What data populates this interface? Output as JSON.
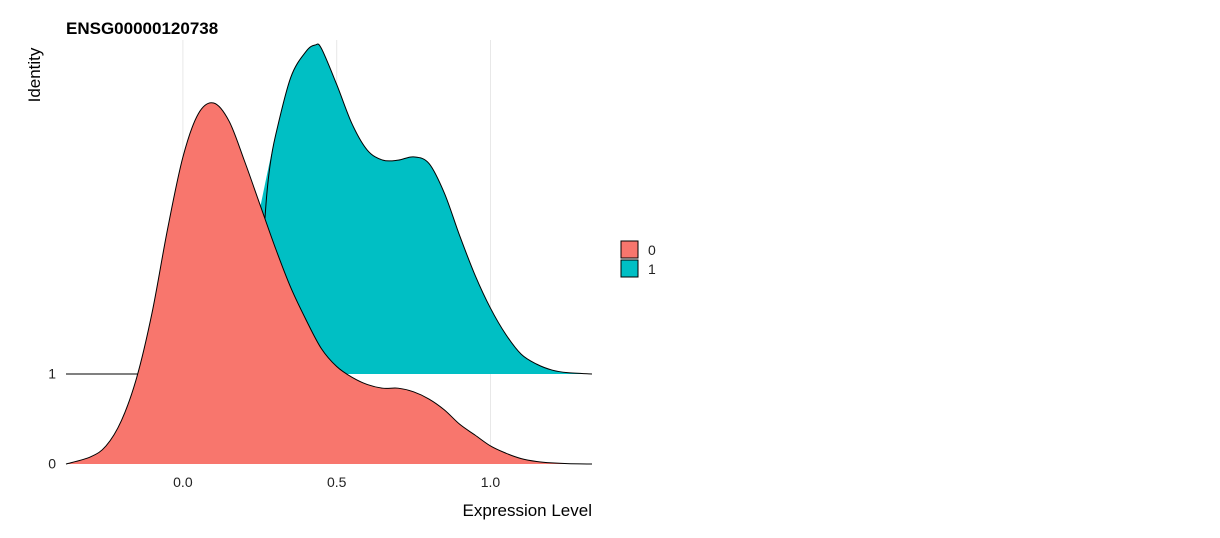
{
  "chart_data": {
    "type": "area",
    "subtype": "ridgeline-density",
    "title": "ENSG00000120738",
    "xlabel": "Expression Level",
    "ylabel": "Identity",
    "xlim": [
      -0.38,
      1.33
    ],
    "x_ticks": [
      "0.0",
      "0.5",
      "1.0"
    ],
    "x_tick_values": [
      0.0,
      0.5,
      1.0
    ],
    "identities": [
      "0",
      "1"
    ],
    "grid": "vertical major lines only",
    "legend": {
      "position": "right",
      "entries": [
        "0",
        "1"
      ]
    },
    "series": [
      {
        "name": "0",
        "color": "#F8766D",
        "baseline": 0,
        "x": [
          -0.38,
          -0.3,
          -0.25,
          -0.2,
          -0.15,
          -0.1,
          -0.05,
          0.0,
          0.05,
          0.1,
          0.15,
          0.2,
          0.25,
          0.3,
          0.35,
          0.4,
          0.45,
          0.5,
          0.55,
          0.6,
          0.65,
          0.7,
          0.75,
          0.8,
          0.85,
          0.9,
          0.95,
          1.0,
          1.05,
          1.1,
          1.15,
          1.2,
          1.25,
          1.33
        ],
        "density": [
          0.0,
          0.02,
          0.05,
          0.12,
          0.24,
          0.42,
          0.65,
          0.85,
          0.97,
          1.0,
          0.95,
          0.84,
          0.72,
          0.6,
          0.49,
          0.4,
          0.32,
          0.27,
          0.24,
          0.22,
          0.21,
          0.21,
          0.2,
          0.18,
          0.15,
          0.11,
          0.08,
          0.05,
          0.03,
          0.015,
          0.007,
          0.003,
          0.001,
          0.0
        ]
      },
      {
        "name": "1",
        "color": "#00BFC4",
        "baseline": 1,
        "x": [
          0.25,
          0.3,
          0.35,
          0.4,
          0.43,
          0.45,
          0.5,
          0.55,
          0.6,
          0.65,
          0.7,
          0.75,
          0.8,
          0.85,
          0.9,
          0.95,
          1.0,
          1.05,
          1.1,
          1.15,
          1.2,
          1.25,
          1.33
        ],
        "density": [
          0.5,
          0.72,
          0.9,
          0.98,
          1.0,
          0.99,
          0.88,
          0.76,
          0.68,
          0.65,
          0.65,
          0.66,
          0.64,
          0.55,
          0.42,
          0.3,
          0.2,
          0.12,
          0.06,
          0.03,
          0.012,
          0.004,
          0.0
        ]
      }
    ]
  }
}
